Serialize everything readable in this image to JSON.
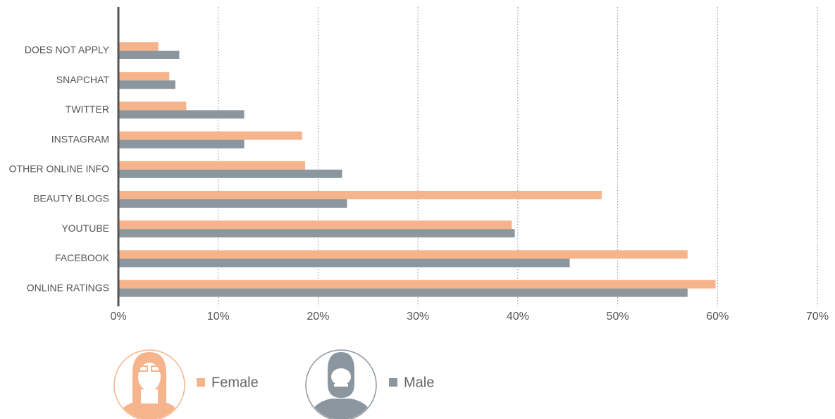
{
  "chart_data": {
    "type": "bar",
    "orientation": "horizontal",
    "categories": [
      "DOES NOT APPLY",
      "SNAPCHAT",
      "TWITTER",
      "INSTAGRAM",
      "OTHER ONLINE INFO",
      "BEAUTY BLOGS",
      "YOUTUBE",
      "FACEBOOK",
      "ONLINE RATINGS"
    ],
    "series": [
      {
        "name": "Female",
        "color": "#f5b48c",
        "values": [
          4,
          5.1,
          6.8,
          18.4,
          18.7,
          48.4,
          39.4,
          57,
          59.8
        ]
      },
      {
        "name": "Male",
        "color": "#8c969e",
        "values": [
          6.1,
          5.7,
          12.6,
          12.6,
          22.4,
          22.9,
          39.7,
          45.2,
          57
        ]
      }
    ],
    "xlim": [
      0,
      70
    ],
    "xticks": [
      {
        "value": 0,
        "label": "0%"
      },
      {
        "value": 10,
        "label": "10%"
      },
      {
        "value": 20,
        "label": "20%"
      },
      {
        "value": 30,
        "label": "30%"
      },
      {
        "value": 40,
        "label": "40%"
      },
      {
        "value": 50,
        "label": "50%"
      },
      {
        "value": 60,
        "label": "60%"
      },
      {
        "value": 70,
        "label": "70%"
      }
    ],
    "grid": true
  }
}
